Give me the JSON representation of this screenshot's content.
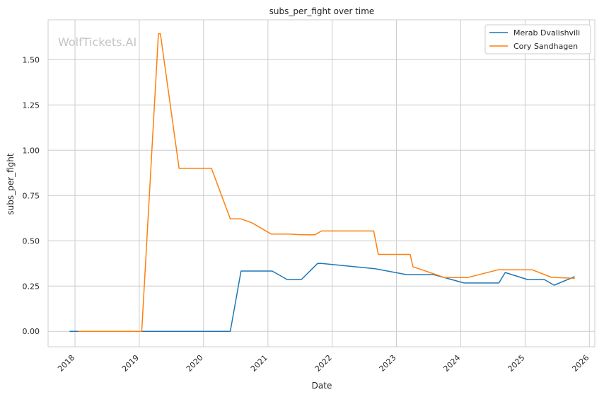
{
  "chart_data": {
    "type": "line",
    "title": "subs_per_fight over time",
    "xlabel": "Date",
    "ylabel": "subs_per_fight",
    "watermark": "WolfTickets.AI",
    "x_axis_type": "date",
    "xlim": [
      "2017-08-01",
      "2026-02-01"
    ],
    "ylim": [
      -0.085,
      1.72
    ],
    "x_ticks": [
      "2018",
      "2019",
      "2020",
      "2021",
      "2022",
      "2023",
      "2024",
      "2025",
      "2026"
    ],
    "y_ticks": [
      "0.00",
      "0.25",
      "0.50",
      "0.75",
      "1.00",
      "1.25",
      "1.50"
    ],
    "y_tick_values": [
      0,
      0.25,
      0.5,
      0.75,
      1.0,
      1.25,
      1.5
    ],
    "grid": true,
    "legend_position": "top-right",
    "series": [
      {
        "name": "Merab Dvalishvili",
        "color": "#1f77b4",
        "points": [
          [
            "2017-12-01",
            0.0
          ],
          [
            "2018-02-01",
            0.0
          ],
          [
            "2019-01-01",
            0.0
          ],
          [
            "2020-06-01",
            0.0
          ],
          [
            "2020-08-01",
            0.333
          ],
          [
            "2021-01-25",
            0.333
          ],
          [
            "2021-04-20",
            0.286
          ],
          [
            "2021-07-10",
            0.286
          ],
          [
            "2021-10-10",
            0.375
          ],
          [
            "2021-11-01",
            0.375
          ],
          [
            "2022-09-01",
            0.346
          ],
          [
            "2023-03-01",
            0.313
          ],
          [
            "2023-08-01",
            0.313
          ],
          [
            "2024-01-20",
            0.267
          ],
          [
            "2024-06-15",
            0.267
          ],
          [
            "2024-08-05",
            0.267
          ],
          [
            "2024-09-10",
            0.325
          ],
          [
            "2025-01-15",
            0.286
          ],
          [
            "2025-04-20",
            0.286
          ],
          [
            "2025-06-15",
            0.255
          ],
          [
            "2025-10-10",
            0.302
          ]
        ]
      },
      {
        "name": "Cory Sandhagen",
        "color": "#ff7f0e",
        "points": [
          [
            "2018-01-20",
            0.0
          ],
          [
            "2019-01-15",
            0.0
          ],
          [
            "2019-04-20",
            1.643
          ],
          [
            "2019-05-01",
            1.643
          ],
          [
            "2019-08-15",
            0.9
          ],
          [
            "2020-02-15",
            0.9
          ],
          [
            "2020-06-01",
            0.621
          ],
          [
            "2020-08-01",
            0.621
          ],
          [
            "2020-10-01",
            0.6
          ],
          [
            "2021-01-20",
            0.537
          ],
          [
            "2021-05-01",
            0.537
          ],
          [
            "2021-07-10",
            0.533
          ],
          [
            "2021-09-25",
            0.533
          ],
          [
            "2021-11-01",
            0.554
          ],
          [
            "2022-08-25",
            0.554
          ],
          [
            "2022-09-20",
            0.425
          ],
          [
            "2023-03-20",
            0.425
          ],
          [
            "2023-04-05",
            0.357
          ],
          [
            "2023-10-01",
            0.297
          ],
          [
            "2024-02-10",
            0.297
          ],
          [
            "2024-08-01",
            0.34
          ],
          [
            "2025-02-10",
            0.34
          ],
          [
            "2025-06-01",
            0.298
          ],
          [
            "2025-10-10",
            0.293
          ]
        ]
      }
    ]
  }
}
